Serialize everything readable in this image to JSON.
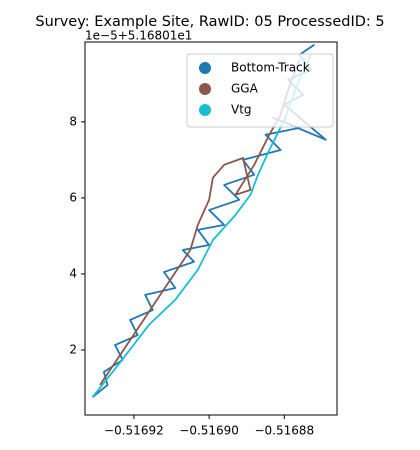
{
  "chart_data": {
    "type": "line",
    "title": "Survey: Example Site, RawID: 05 ProcessedID: 5",
    "y_offset_label": "1e−5+5.16801e1",
    "xlim": [
      -0.516933,
      -0.516866
    ],
    "ylim": [
      0.29,
      10.1
    ],
    "xticks": [
      {
        "value": -0.51692,
        "label": "−0.51692"
      },
      {
        "value": -0.5169,
        "label": "−0.51690"
      },
      {
        "value": -0.51688,
        "label": "−0.51688"
      }
    ],
    "yticks": [
      2,
      4,
      6,
      8
    ],
    "legend": "upper right",
    "series": [
      {
        "name": "Bottom-Track",
        "color": "#1f77b4",
        "x": [
          -0.516931,
          -0.516927,
          -0.516928,
          -0.516923,
          -0.516925,
          -0.516919,
          -0.516921,
          -0.516915,
          -0.516917,
          -0.516909,
          -0.516912,
          -0.516904,
          -0.516907,
          -0.5169,
          -0.516903,
          -0.516896,
          -0.5169,
          -0.516892,
          -0.516896,
          -0.516888,
          -0.516891,
          -0.516881,
          -0.516885,
          -0.516876,
          -0.516883,
          -0.516869,
          -0.51688,
          -0.516875,
          -0.516879,
          -0.516873,
          -0.516876,
          -0.516872
        ],
        "values": [
          0.76,
          1.08,
          1.42,
          1.74,
          2.13,
          2.39,
          2.79,
          3.05,
          3.45,
          3.63,
          4.05,
          4.32,
          4.63,
          4.76,
          5.16,
          5.29,
          5.68,
          5.95,
          6.34,
          6.61,
          7.0,
          7.26,
          7.66,
          7.84,
          8.11,
          7.53,
          8.45,
          8.71,
          9.11,
          9.37,
          9.76,
          10.03
        ]
      },
      {
        "name": "GGA",
        "color": "#8c564b",
        "x": [
          -0.516929,
          -0.516921,
          -0.516913,
          -0.516905,
          -0.516903,
          -0.5169,
          -0.516899,
          -0.516896,
          -0.516891,
          -0.516889,
          -0.516893,
          -0.516888,
          -0.516884,
          -0.516881,
          -0.516879,
          -0.516876
        ],
        "values": [
          1.08,
          2.26,
          3.45,
          4.63,
          5.29,
          5.95,
          6.53,
          6.87,
          7.05,
          6.21,
          6.08,
          6.87,
          7.66,
          8.18,
          8.84,
          9.63
        ]
      },
      {
        "name": "Vtg",
        "color": "#17becf",
        "x": [
          -0.516931,
          -0.516924,
          -0.516916,
          -0.516909,
          -0.516903,
          -0.516899,
          -0.516893,
          -0.516889,
          -0.516887,
          -0.516884,
          -0.51688,
          -0.516876,
          -0.516873
        ],
        "values": [
          0.76,
          1.63,
          2.66,
          3.32,
          4.11,
          4.89,
          5.55,
          6.08,
          6.61,
          7.26,
          8.05,
          9.11,
          9.76
        ]
      }
    ]
  }
}
